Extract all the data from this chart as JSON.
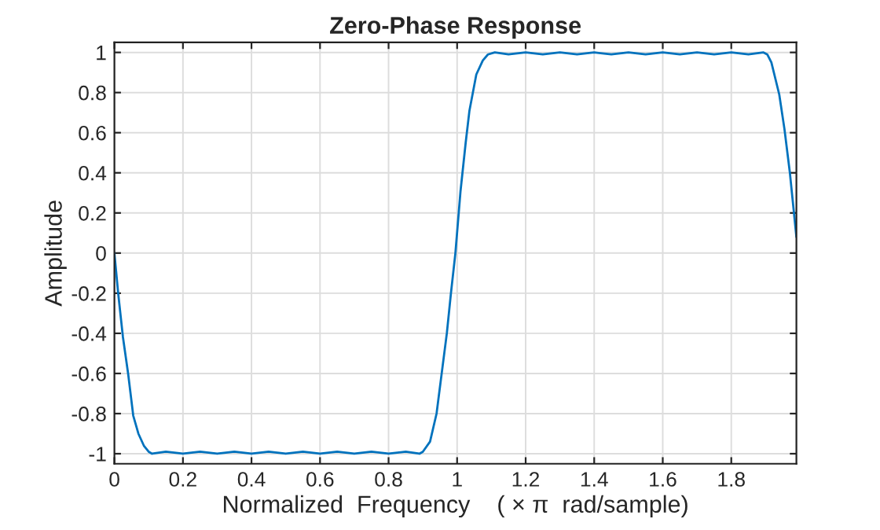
{
  "chart_data": {
    "type": "line",
    "title": "Zero-Phase Response",
    "xlabel": "Normalized  Frequency    ( × π  rad/sample)",
    "ylabel": "Amplitude",
    "x": [
      0,
      0.011,
      0.025,
      0.04,
      0.055,
      0.07,
      0.086,
      0.1,
      0.11,
      0.15,
      0.2,
      0.25,
      0.3,
      0.35,
      0.4,
      0.45,
      0.5,
      0.55,
      0.6,
      0.65,
      0.7,
      0.75,
      0.8,
      0.85,
      0.89,
      0.9,
      0.921,
      0.94,
      0.955,
      0.97,
      0.982,
      0.995,
      1.01,
      1.025,
      1.036,
      1.056,
      1.075,
      1.09,
      1.11,
      1.15,
      1.2,
      1.25,
      1.3,
      1.35,
      1.4,
      1.45,
      1.5,
      1.55,
      1.6,
      1.65,
      1.7,
      1.75,
      1.8,
      1.85,
      1.894,
      1.905,
      1.917,
      1.94,
      1.955,
      1.971,
      1.99
    ],
    "series": [
      {
        "color": "#0072bd",
        "values": [
          0,
          -0.2,
          -0.42,
          -0.6,
          -0.81,
          -0.9,
          -0.96,
          -0.99,
          -1.0,
          -0.99,
          -1.0,
          -0.99,
          -1.0,
          -0.99,
          -1.0,
          -0.99,
          -1.0,
          -0.99,
          -1.0,
          -0.99,
          -1.0,
          -0.99,
          -1.0,
          -0.99,
          -1.0,
          -0.99,
          -0.94,
          -0.8,
          -0.6,
          -0.4,
          -0.2,
          0,
          0.31,
          0.55,
          0.71,
          0.89,
          0.96,
          0.99,
          1.0,
          0.99,
          1.0,
          0.99,
          1.0,
          0.99,
          1.0,
          0.99,
          1.0,
          0.99,
          1.0,
          0.99,
          1.0,
          0.99,
          1.0,
          0.99,
          1.0,
          0.99,
          0.95,
          0.79,
          0.62,
          0.4,
          0.08
        ]
      }
    ],
    "xlim": [
      0,
      1.99
    ],
    "ylim": [
      -1.05,
      1.05
    ],
    "xticks": [
      0,
      0.2,
      0.4,
      0.6,
      0.8,
      1,
      1.2,
      1.4,
      1.6,
      1.8
    ],
    "yticks": [
      -1,
      -0.8,
      -0.6,
      -0.4,
      -0.2,
      0,
      0.2,
      0.4,
      0.6,
      0.8,
      1
    ],
    "grid": true,
    "line_style": "solid",
    "marker": "none"
  }
}
